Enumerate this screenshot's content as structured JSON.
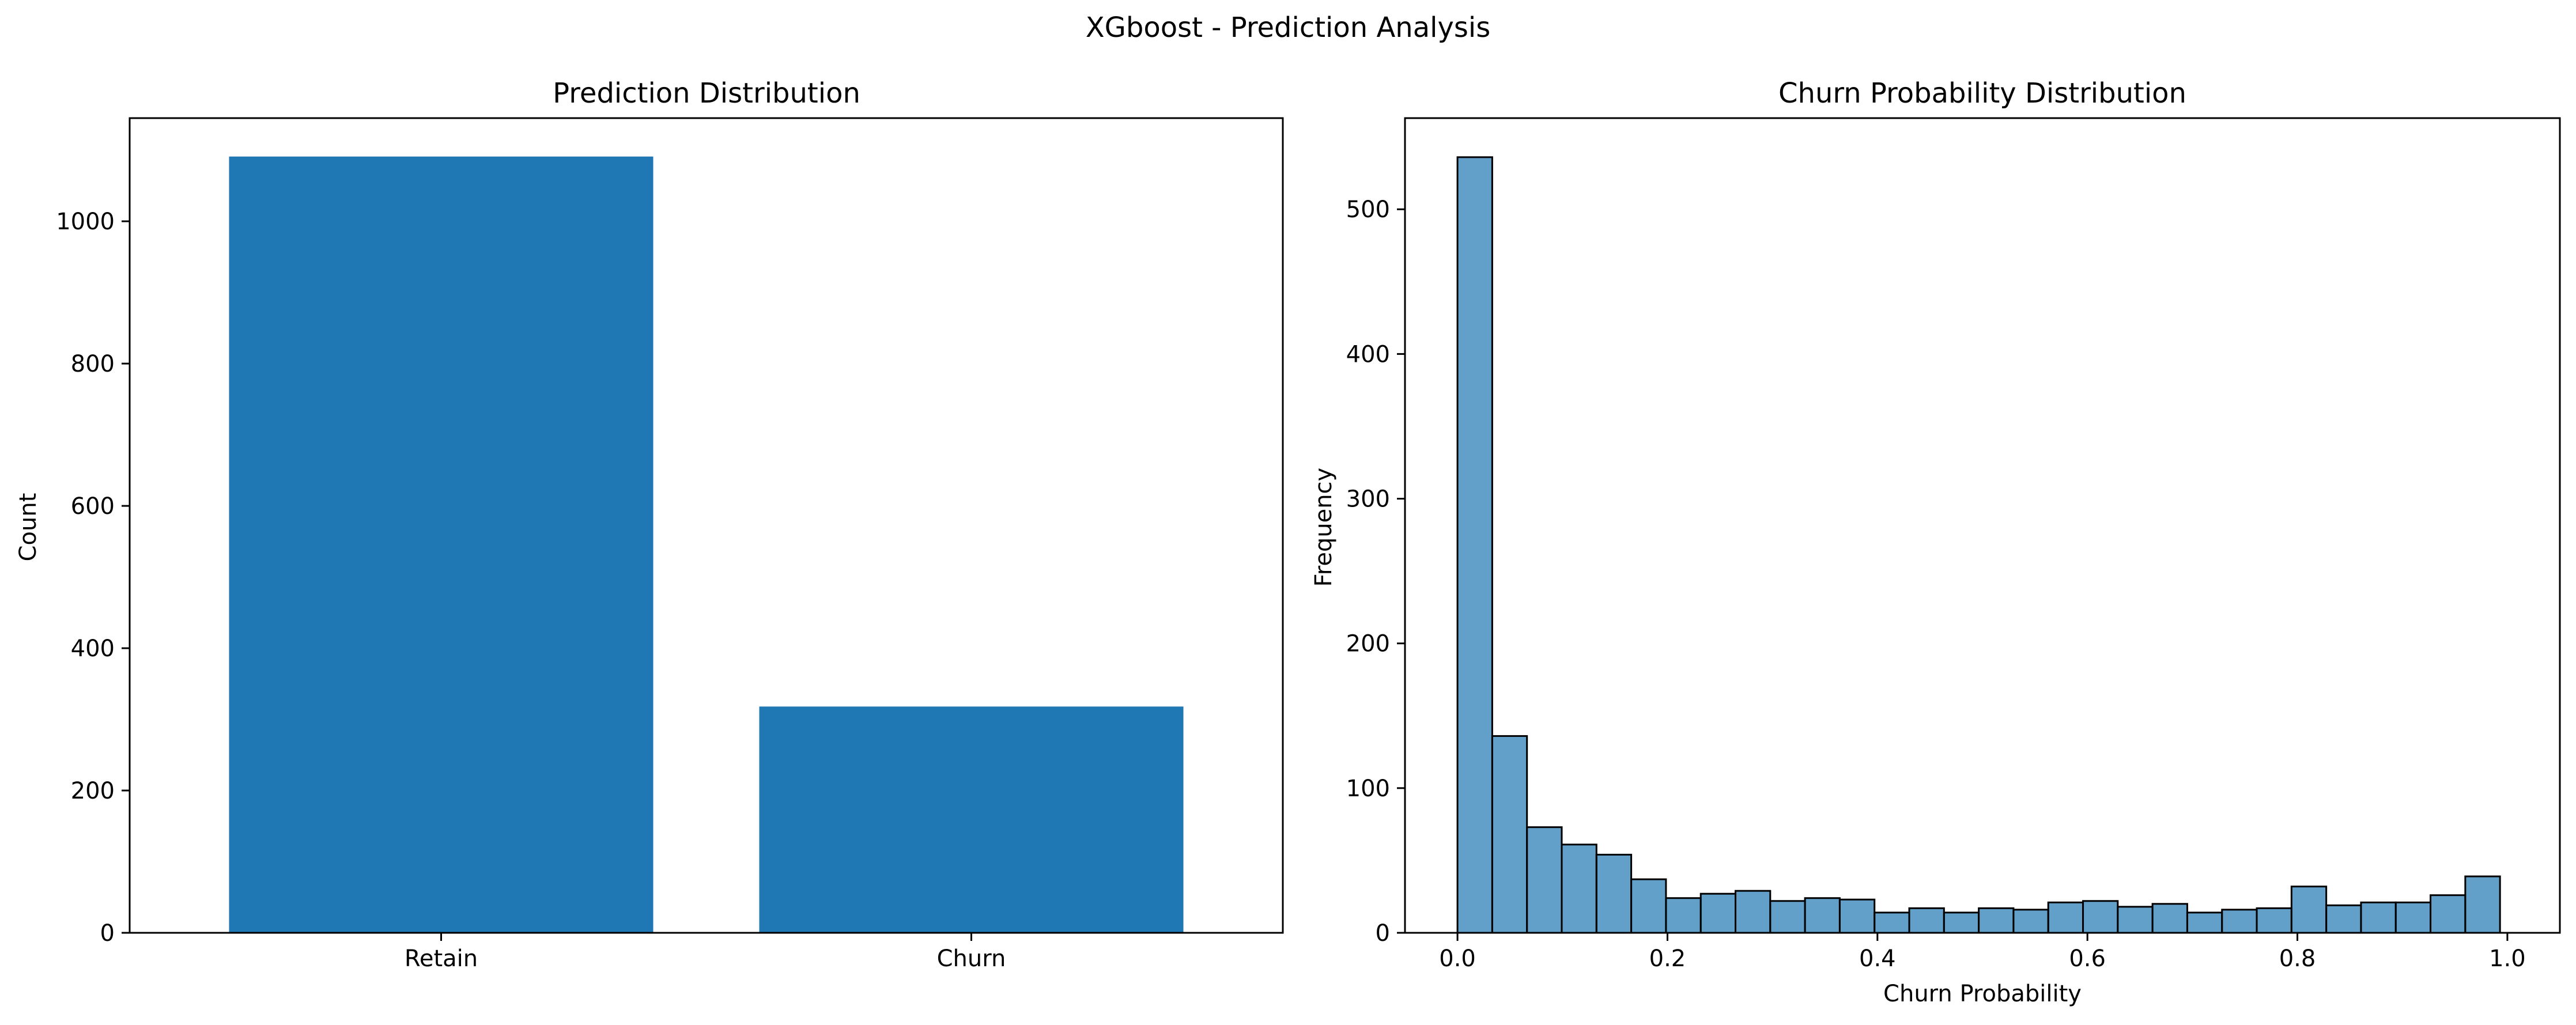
{
  "figure": {
    "title": "XGboost - Prediction Analysis"
  },
  "chart_data": [
    {
      "type": "bar",
      "title": "Prediction Distribution",
      "xlabel": "",
      "ylabel": "Count",
      "categories": [
        "Retain",
        "Churn"
      ],
      "values": [
        1091,
        318
      ],
      "ylim": [
        0,
        1145
      ],
      "yticks": [
        0,
        200,
        400,
        600,
        800,
        1000
      ],
      "grid": false,
      "color": "#1f77b4"
    },
    {
      "type": "bar",
      "subtype": "histogram",
      "title": "Churn Probability Distribution",
      "xlabel": "Churn Probability",
      "ylabel": "Frequency",
      "bin_start": 0.0,
      "bin_width": 0.0331,
      "values": [
        536,
        136,
        73,
        61,
        54,
        37,
        24,
        27,
        29,
        22,
        24,
        23,
        14,
        17,
        14,
        17,
        16,
        21,
        22,
        18,
        20,
        14,
        16,
        17,
        32,
        19,
        21,
        21,
        26,
        39
      ],
      "xlim": [
        -0.05,
        1.05
      ],
      "ylim": [
        0,
        563
      ],
      "xticks": [
        0.0,
        0.2,
        0.4,
        0.6,
        0.8,
        1.0
      ],
      "xtick_labels": [
        "0.0",
        "0.2",
        "0.4",
        "0.6",
        "0.8",
        "1.0"
      ],
      "yticks": [
        0,
        100,
        200,
        300,
        400,
        500
      ],
      "grid": false,
      "color": "#1f77b4",
      "edgecolor": "#000000"
    }
  ]
}
